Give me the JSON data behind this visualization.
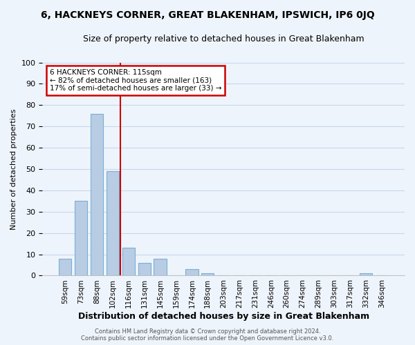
{
  "title": "6, HACKNEYS CORNER, GREAT BLAKENHAM, IPSWICH, IP6 0JQ",
  "subtitle": "Size of property relative to detached houses in Great Blakenham",
  "xlabel": "Distribution of detached houses by size in Great Blakenham",
  "ylabel": "Number of detached properties",
  "bin_labels": [
    "59sqm",
    "73sqm",
    "88sqm",
    "102sqm",
    "116sqm",
    "131sqm",
    "145sqm",
    "159sqm",
    "174sqm",
    "188sqm",
    "203sqm",
    "217sqm",
    "231sqm",
    "246sqm",
    "260sqm",
    "274sqm",
    "289sqm",
    "303sqm",
    "317sqm",
    "332sqm",
    "346sqm"
  ],
  "bar_values": [
    8,
    35,
    76,
    49,
    13,
    6,
    8,
    0,
    3,
    1,
    0,
    0,
    0,
    0,
    0,
    0,
    0,
    0,
    0,
    1,
    0
  ],
  "bar_color": "#b8cce4",
  "bar_edge_color": "#7aafd4",
  "grid_color": "#c8d8ea",
  "background_color": "#eef4fb",
  "vline_color": "#cc0000",
  "annotation_text": "6 HACKNEYS CORNER: 115sqm\n← 82% of detached houses are smaller (163)\n17% of semi-detached houses are larger (33) →",
  "annotation_box_color": "#ffffff",
  "annotation_box_edgecolor": "#cc0000",
  "ylim": [
    0,
    100
  ],
  "yticks": [
    0,
    10,
    20,
    30,
    40,
    50,
    60,
    70,
    80,
    90,
    100
  ],
  "footer1": "Contains HM Land Registry data © Crown copyright and database right 2024.",
  "footer2": "Contains public sector information licensed under the Open Government Licence v3.0.",
  "title_fontsize": 10,
  "subtitle_fontsize": 9,
  "bar_width": 0.8
}
